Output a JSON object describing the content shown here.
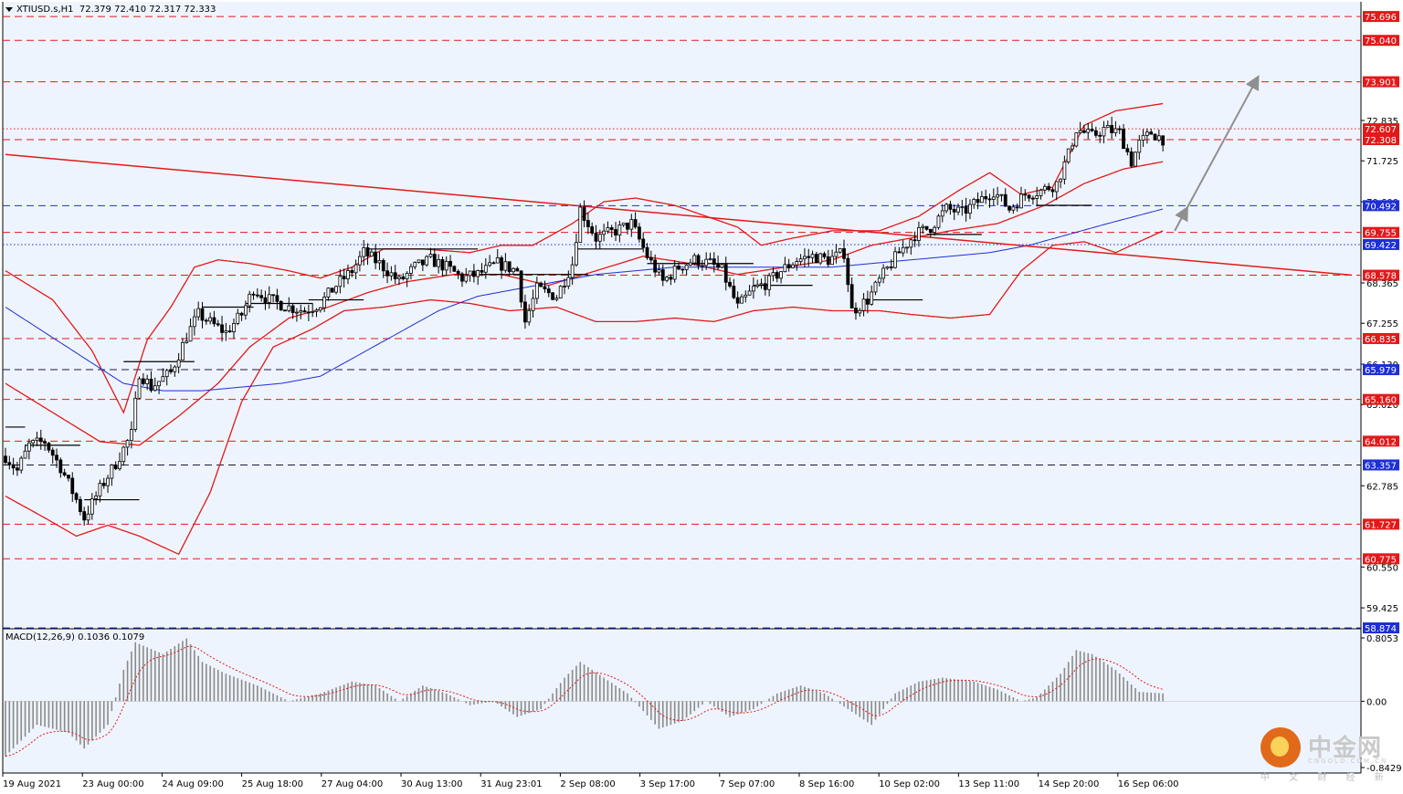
{
  "window": {
    "title": "XTIUSD.s,H1  72.379 72.410 72.317 72.333",
    "symbol": "XTIUSD.s",
    "timeframe": "H1",
    "ohlc": [
      "72.379",
      "72.410",
      "72.317",
      "72.333"
    ]
  },
  "colors": {
    "background": "#ffffff",
    "plot_background": "#eef4fd",
    "red": "#e31919",
    "blue": "#1d2fd6",
    "black": "#000000",
    "grey_arrow": "#8f8f8f",
    "macd_histogram": "#8a8a8a",
    "macd_signal": "#e31919"
  },
  "price_axis_ticks": [
    "72.835",
    "71.725",
    "70.600",
    "68.365",
    "67.255",
    "66.130",
    "65.020",
    "62.785",
    "60.550",
    "59.425"
  ],
  "level_labels": [
    {
      "price": 75.696,
      "label": "75.696",
      "color": "red"
    },
    {
      "price": 75.04,
      "label": "75.040",
      "color": "red"
    },
    {
      "price": 73.901,
      "label": "73.901",
      "color": "red"
    },
    {
      "price": 72.607,
      "label": "72.607",
      "color": "red"
    },
    {
      "price": 72.308,
      "label": "72.308",
      "color": "red"
    },
    {
      "price": 70.492,
      "label": "70.492",
      "color": "blue"
    },
    {
      "price": 69.755,
      "label": "69.755",
      "color": "red"
    },
    {
      "price": 69.422,
      "label": "69.422",
      "color": "blue"
    },
    {
      "price": 68.578,
      "label": "68.578",
      "color": "red"
    },
    {
      "price": 66.835,
      "label": "66.835",
      "color": "red"
    },
    {
      "price": 65.979,
      "label": "65.979",
      "color": "blue"
    },
    {
      "price": 65.16,
      "label": "65.160",
      "color": "red"
    },
    {
      "price": 64.012,
      "label": "64.012",
      "color": "red"
    },
    {
      "price": 63.357,
      "label": "63.357",
      "color": "blue"
    },
    {
      "price": 61.727,
      "label": "61.727",
      "color": "red"
    },
    {
      "price": 60.775,
      "label": "60.775",
      "color": "red"
    },
    {
      "price": 58.874,
      "label": "58.874",
      "color": "blue"
    }
  ],
  "time_axis_labels": [
    "19 Aug 2021",
    "23 Aug 00:00",
    "24 Aug 09:00",
    "25 Aug 18:00",
    "27 Aug 04:00",
    "30 Aug 13:00",
    "31 Aug 23:01",
    "2 Sep 08:00",
    "3 Sep 17:00",
    "7 Sep 07:00",
    "8 Sep 16:00",
    "10 Sep 02:00",
    "13 Sep 11:00",
    "14 Sep 20:00",
    "16 Sep 06:00"
  ],
  "macd": {
    "title": "MACD(12,26,9) 0.1036 0.1079",
    "axis_ticks": [
      "0.8053",
      "0.00",
      "-0.8429"
    ]
  },
  "chart_data": {
    "type": "candlestick",
    "title": "XTIUSD.s,H1",
    "y_range": [
      58.874,
      76.1
    ],
    "candle_count": 295,
    "anchors": [
      [
        0,
        63.6
      ],
      [
        3,
        63.2
      ],
      [
        6,
        63.9
      ],
      [
        10,
        64.0
      ],
      [
        14,
        63.3
      ],
      [
        18,
        62.4
      ],
      [
        20,
        61.9
      ],
      [
        24,
        62.7
      ],
      [
        28,
        63.4
      ],
      [
        32,
        64.2
      ],
      [
        34,
        65.9
      ],
      [
        37,
        65.5
      ],
      [
        42,
        65.9
      ],
      [
        46,
        66.9
      ],
      [
        49,
        67.5
      ],
      [
        53,
        67.2
      ],
      [
        56,
        67.0
      ],
      [
        60,
        67.5
      ],
      [
        63,
        68.2
      ],
      [
        67,
        67.9
      ],
      [
        72,
        67.7
      ],
      [
        76,
        67.6
      ],
      [
        80,
        67.8
      ],
      [
        84,
        68.3
      ],
      [
        88,
        68.7
      ],
      [
        91,
        69.2
      ],
      [
        95,
        68.9
      ],
      [
        100,
        68.4
      ],
      [
        104,
        68.8
      ],
      [
        108,
        69.0
      ],
      [
        112,
        68.8
      ],
      [
        116,
        68.5
      ],
      [
        120,
        68.6
      ],
      [
        125,
        68.9
      ],
      [
        130,
        68.7
      ],
      [
        132,
        67.3
      ],
      [
        135,
        68.2
      ],
      [
        140,
        68.0
      ],
      [
        144,
        68.9
      ],
      [
        146,
        70.4
      ],
      [
        150,
        69.6
      ],
      [
        155,
        69.8
      ],
      [
        159,
        70.0
      ],
      [
        163,
        69.1
      ],
      [
        167,
        68.4
      ],
      [
        171,
        68.8
      ],
      [
        175,
        69.0
      ],
      [
        179,
        68.9
      ],
      [
        182,
        68.7
      ],
      [
        186,
        67.7
      ],
      [
        190,
        68.2
      ],
      [
        194,
        68.4
      ],
      [
        197,
        68.7
      ],
      [
        201,
        69.0
      ],
      [
        205,
        69.1
      ],
      [
        209,
        69.0
      ],
      [
        213,
        69.2
      ],
      [
        215,
        67.6
      ],
      [
        219,
        67.9
      ],
      [
        223,
        68.6
      ],
      [
        227,
        69.2
      ],
      [
        231,
        69.7
      ],
      [
        235,
        69.9
      ],
      [
        239,
        70.4
      ],
      [
        243,
        70.3
      ],
      [
        247,
        70.6
      ],
      [
        251,
        70.9
      ],
      [
        255,
        70.4
      ],
      [
        259,
        70.8
      ],
      [
        263,
        70.9
      ],
      [
        267,
        71.1
      ],
      [
        270,
        71.9
      ],
      [
        272,
        72.6
      ],
      [
        276,
        72.4
      ],
      [
        279,
        72.6
      ],
      [
        283,
        72.5
      ],
      [
        286,
        71.7
      ],
      [
        288,
        72.2
      ],
      [
        291,
        72.5
      ],
      [
        294,
        72.33
      ]
    ],
    "bollinger_upper": [
      [
        0,
        68.7
      ],
      [
        12,
        67.9
      ],
      [
        22,
        66.5
      ],
      [
        30,
        64.8
      ],
      [
        36,
        66.8
      ],
      [
        42,
        67.7
      ],
      [
        48,
        68.8
      ],
      [
        54,
        69.0
      ],
      [
        62,
        68.9
      ],
      [
        72,
        68.7
      ],
      [
        80,
        68.5
      ],
      [
        88,
        68.8
      ],
      [
        96,
        69.3
      ],
      [
        106,
        69.3
      ],
      [
        118,
        69.2
      ],
      [
        126,
        69.4
      ],
      [
        134,
        69.4
      ],
      [
        144,
        70.0
      ],
      [
        152,
        70.6
      ],
      [
        160,
        70.7
      ],
      [
        170,
        70.5
      ],
      [
        178,
        70.2
      ],
      [
        186,
        69.9
      ],
      [
        192,
        69.4
      ],
      [
        200,
        69.6
      ],
      [
        210,
        69.8
      ],
      [
        222,
        69.8
      ],
      [
        232,
        70.2
      ],
      [
        242,
        70.9
      ],
      [
        250,
        71.4
      ],
      [
        258,
        70.8
      ],
      [
        266,
        71.0
      ],
      [
        274,
        72.7
      ],
      [
        282,
        73.1
      ],
      [
        294,
        73.3
      ]
    ],
    "bollinger_lower": [
      [
        0,
        62.5
      ],
      [
        10,
        61.9
      ],
      [
        18,
        61.4
      ],
      [
        26,
        61.7
      ],
      [
        34,
        61.4
      ],
      [
        44,
        60.9
      ],
      [
        52,
        62.6
      ],
      [
        60,
        65.1
      ],
      [
        68,
        66.6
      ],
      [
        78,
        67.1
      ],
      [
        86,
        67.6
      ],
      [
        96,
        67.7
      ],
      [
        108,
        67.9
      ],
      [
        118,
        67.8
      ],
      [
        128,
        67.6
      ],
      [
        140,
        67.7
      ],
      [
        150,
        67.3
      ],
      [
        160,
        67.3
      ],
      [
        170,
        67.4
      ],
      [
        180,
        67.3
      ],
      [
        190,
        67.6
      ],
      [
        200,
        67.7
      ],
      [
        210,
        67.6
      ],
      [
        222,
        67.6
      ],
      [
        230,
        67.5
      ],
      [
        240,
        67.4
      ],
      [
        250,
        67.5
      ],
      [
        258,
        68.7
      ],
      [
        266,
        69.4
      ],
      [
        274,
        69.5
      ],
      [
        282,
        69.2
      ],
      [
        294,
        69.8
      ]
    ],
    "bollinger_middle": [
      [
        0,
        65.6
      ],
      [
        12,
        64.8
      ],
      [
        24,
        64.0
      ],
      [
        34,
        63.9
      ],
      [
        44,
        64.7
      ],
      [
        54,
        65.6
      ],
      [
        62,
        66.6
      ],
      [
        72,
        67.4
      ],
      [
        82,
        67.7
      ],
      [
        92,
        68.1
      ],
      [
        102,
        68.4
      ],
      [
        114,
        68.6
      ],
      [
        126,
        68.6
      ],
      [
        138,
        68.3
      ],
      [
        150,
        68.7
      ],
      [
        162,
        69.1
      ],
      [
        174,
        68.9
      ],
      [
        186,
        68.6
      ],
      [
        198,
        68.8
      ],
      [
        210,
        69.0
      ],
      [
        220,
        69.4
      ],
      [
        230,
        69.6
      ],
      [
        240,
        69.8
      ],
      [
        252,
        70.0
      ],
      [
        264,
        70.5
      ],
      [
        274,
        71.1
      ],
      [
        284,
        71.5
      ],
      [
        294,
        71.7
      ]
    ],
    "moving_average": [
      [
        0,
        67.7
      ],
      [
        10,
        67.0
      ],
      [
        20,
        66.3
      ],
      [
        30,
        65.6
      ],
      [
        40,
        65.4
      ],
      [
        50,
        65.4
      ],
      [
        60,
        65.5
      ],
      [
        70,
        65.6
      ],
      [
        80,
        65.8
      ],
      [
        90,
        66.4
      ],
      [
        100,
        67.0
      ],
      [
        110,
        67.6
      ],
      [
        120,
        68.0
      ],
      [
        130,
        68.2
      ],
      [
        140,
        68.4
      ],
      [
        150,
        68.6
      ],
      [
        160,
        68.7
      ],
      [
        170,
        68.8
      ],
      [
        180,
        68.8
      ],
      [
        190,
        68.8
      ],
      [
        200,
        68.8
      ],
      [
        210,
        68.8
      ],
      [
        220,
        68.9
      ],
      [
        230,
        69.0
      ],
      [
        240,
        69.1
      ],
      [
        250,
        69.2
      ],
      [
        260,
        69.4
      ],
      [
        270,
        69.7
      ],
      [
        280,
        70.0
      ],
      [
        294,
        70.4
      ]
    ],
    "trend_line": {
      "start": [
        0,
        71.9
      ],
      "end": [
        342,
        68.58
      ]
    },
    "arrows": [
      {
        "from": [
          297,
          69.8
        ],
        "to": [
          300,
          70.4
        ]
      },
      {
        "from": [
          300,
          70.4
        ],
        "to": [
          318,
          74.0
        ]
      }
    ],
    "horizontal_segments": [
      {
        "x": [
          0,
          5
        ],
        "price": 64.4
      },
      {
        "x": [
          5,
          19
        ],
        "price": 63.9
      },
      {
        "x": [
          20,
          34
        ],
        "price": 62.4
      },
      {
        "x": [
          30,
          48
        ],
        "price": 66.2
      },
      {
        "x": [
          50,
          63
        ],
        "price": 67.7
      },
      {
        "x": [
          61,
          78
        ],
        "price": 67.8
      },
      {
        "x": [
          77,
          91
        ],
        "price": 67.9
      },
      {
        "x": [
          92,
          120
        ],
        "price": 69.3
      },
      {
        "x": [
          118,
          148
        ],
        "price": 68.6
      },
      {
        "x": [
          145,
          162
        ],
        "price": 69.3
      },
      {
        "x": [
          163,
          190
        ],
        "price": 68.9
      },
      {
        "x": [
          190,
          205
        ],
        "price": 68.3
      },
      {
        "x": [
          218,
          233
        ],
        "price": 67.9
      },
      {
        "x": [
          234,
          248
        ],
        "price": 69.7
      },
      {
        "x": [
          262,
          276
        ],
        "price": 70.5
      }
    ],
    "macd": {
      "macd_value": 0.1036,
      "signal_value": 0.1079,
      "y_range": [
        -0.8429,
        0.8053
      ],
      "anchors": [
        [
          0,
          -0.7
        ],
        [
          8,
          -0.3
        ],
        [
          16,
          -0.4
        ],
        [
          20,
          -0.6
        ],
        [
          26,
          -0.3
        ],
        [
          30,
          0.4
        ],
        [
          33,
          0.75
        ],
        [
          40,
          0.6
        ],
        [
          46,
          0.8
        ],
        [
          50,
          0.5
        ],
        [
          56,
          0.35
        ],
        [
          64,
          0.2
        ],
        [
          72,
          0.0
        ],
        [
          80,
          0.1
        ],
        [
          88,
          0.25
        ],
        [
          94,
          0.2
        ],
        [
          100,
          0.0
        ],
        [
          106,
          0.2
        ],
        [
          112,
          0.1
        ],
        [
          118,
          -0.05
        ],
        [
          124,
          0.0
        ],
        [
          130,
          -0.2
        ],
        [
          136,
          -0.1
        ],
        [
          142,
          0.3
        ],
        [
          146,
          0.5
        ],
        [
          152,
          0.3
        ],
        [
          158,
          0.1
        ],
        [
          166,
          -0.35
        ],
        [
          172,
          -0.25
        ],
        [
          178,
          0.0
        ],
        [
          184,
          -0.2
        ],
        [
          190,
          -0.1
        ],
        [
          196,
          0.1
        ],
        [
          202,
          0.2
        ],
        [
          208,
          0.1
        ],
        [
          214,
          -0.1
        ],
        [
          220,
          -0.3
        ],
        [
          226,
          0.1
        ],
        [
          232,
          0.25
        ],
        [
          238,
          0.3
        ],
        [
          246,
          0.25
        ],
        [
          252,
          0.15
        ],
        [
          258,
          0.0
        ],
        [
          262,
          0.05
        ],
        [
          268,
          0.35
        ],
        [
          272,
          0.65
        ],
        [
          276,
          0.6
        ],
        [
          282,
          0.4
        ],
        [
          288,
          0.12
        ],
        [
          294,
          0.1
        ]
      ]
    }
  },
  "watermark": {
    "brand_cn": "中金网",
    "brand_en": "CNGOLD.COM.CN",
    "tagline": "中 文 财 经 新 媒 体"
  }
}
